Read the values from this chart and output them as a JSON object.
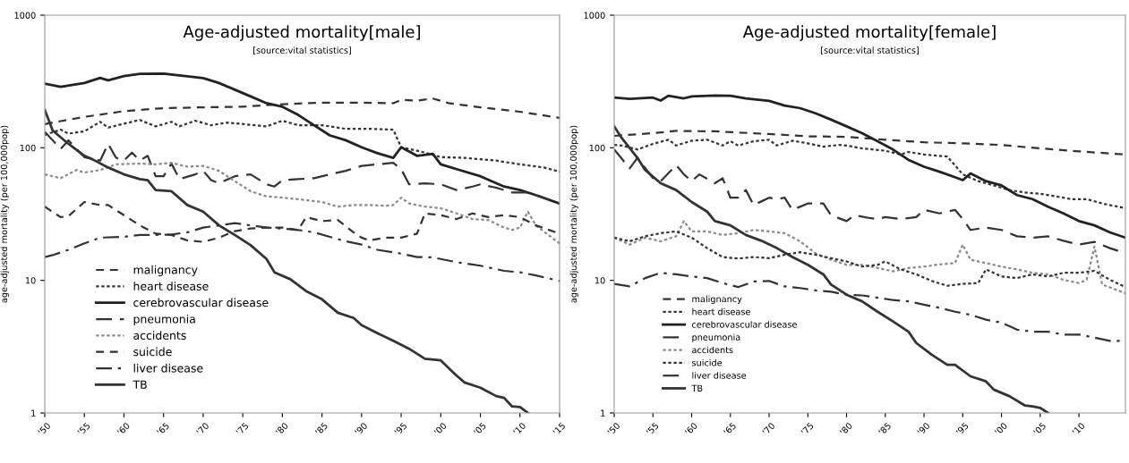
{
  "chart_data": [
    {
      "type": "line",
      "title": "Age-adjusted mortality[male]",
      "subtitle": "[source:vital statistics]",
      "ylabel": "age-adjusted mortality (per 100,000pop)",
      "log": "y",
      "grid": false,
      "legend": "bottom left",
      "xlim": [
        1950,
        2015
      ],
      "xticks": [
        {
          "value": 1950,
          "label": "'50"
        },
        {
          "value": 1955,
          "label": "'55"
        },
        {
          "value": 1960,
          "label": "'60"
        },
        {
          "value": 1965,
          "label": "'65"
        },
        {
          "value": 1970,
          "label": "'70"
        },
        {
          "value": 1975,
          "label": "'75"
        },
        {
          "value": 1980,
          "label": "'80"
        },
        {
          "value": 1985,
          "label": "'85"
        },
        {
          "value": 1990,
          "label": "'90"
        },
        {
          "value": 1995,
          "label": "'95"
        },
        {
          "value": 2000,
          "label": "'00"
        },
        {
          "value": 2005,
          "label": "'05"
        },
        {
          "value": 2010,
          "label": "'10"
        },
        {
          "value": 2015,
          "label": "'15"
        }
      ],
      "ylim": [
        1,
        1000
      ],
      "yticks": [
        1,
        10,
        100,
        1000
      ],
      "series": [
        {
          "name": "malignancy",
          "color": "#333333",
          "line_style": "dashed",
          "x": [
            1950,
            1955,
            1960,
            1965,
            1970,
            1975,
            1980,
            1985,
            1990,
            1994,
            1995,
            1997,
            1999,
            2001,
            2005,
            2010,
            2015
          ],
          "values": [
            151,
            171,
            189,
            199,
            202,
            204,
            213,
            219,
            219,
            217,
            230,
            227,
            235,
            217,
            202,
            187,
            168
          ]
        },
        {
          "name": "heart disease",
          "color": "#333333",
          "line_style": "dotted",
          "x": [
            1950,
            1952,
            1953,
            1955,
            1957,
            1958,
            1960,
            1962,
            1964,
            1966,
            1967,
            1969,
            1971,
            1973,
            1976,
            1978,
            1980,
            1982,
            1985,
            1988,
            1991,
            1994,
            1995,
            1996,
            1998,
            2000,
            2003,
            2005,
            2007,
            2010,
            2013,
            2015
          ],
          "values": [
            125,
            137,
            128,
            133,
            157,
            142,
            152,
            162,
            145,
            157,
            145,
            160,
            148,
            155,
            149,
            145,
            160,
            148,
            148,
            139,
            139,
            137,
            101,
            98,
            92,
            85,
            84,
            82,
            80,
            75,
            71,
            66
          ]
        },
        {
          "name": "cerebrovascular disease",
          "color": "#222222",
          "line_style": "solid",
          "x": [
            1950,
            1952,
            1955,
            1957,
            1958,
            1960,
            1962,
            1965,
            1967,
            1970,
            1972,
            1974,
            1976,
            1978,
            1980,
            1982,
            1984,
            1986,
            1988,
            1990,
            1992,
            1994,
            1995,
            1997,
            1999,
            2000,
            2002,
            2005,
            2008,
            2010,
            2012,
            2015
          ],
          "values": [
            305,
            288,
            308,
            337,
            323,
            347,
            361,
            363,
            351,
            335,
            308,
            274,
            244,
            217,
            204,
            177,
            148,
            124,
            114,
            101,
            91,
            84,
            101,
            87,
            90,
            75,
            69,
            61,
            51,
            48,
            44,
            38
          ]
        },
        {
          "name": "pneumonia",
          "color": "#333333",
          "line_style": "longdash",
          "x": [
            1950,
            1952,
            1953,
            1955,
            1957,
            1958,
            1959,
            1960,
            1961,
            1962,
            1963,
            1964,
            1965,
            1966,
            1967,
            1969,
            1970,
            1971,
            1972,
            1974,
            1976,
            1978,
            1979,
            1980,
            1982,
            1984,
            1986,
            1988,
            1990,
            1992,
            1994,
            1995,
            1996,
            1998,
            2000,
            2002,
            2004,
            2005,
            2007,
            2009,
            2011,
            2013,
            2015
          ],
          "values": [
            132,
            98,
            114,
            85,
            80,
            107,
            84,
            80,
            92,
            80,
            87,
            61,
            61,
            76,
            58,
            63,
            67,
            57,
            54,
            61,
            63,
            53,
            51,
            57,
            58,
            59,
            63,
            67,
            73,
            75,
            77,
            69,
            53,
            54,
            53,
            48,
            51,
            53,
            50,
            46,
            46,
            42,
            38
          ]
        },
        {
          "name": "accidents",
          "color": "#8a8a8a",
          "line_style": "dotted",
          "x": [
            1950,
            1952,
            1954,
            1955,
            1957,
            1959,
            1962,
            1964,
            1966,
            1968,
            1970,
            1972,
            1974,
            1976,
            1978,
            1980,
            1982,
            1985,
            1987,
            1989,
            1991,
            1993,
            1994,
            1995,
            1996,
            1998,
            2000,
            2002,
            2004,
            2006,
            2008,
            2009,
            2010,
            2011,
            2012,
            2015
          ],
          "values": [
            63,
            59,
            68,
            65,
            68,
            75,
            76,
            75,
            77,
            72,
            73,
            67,
            56,
            47,
            43,
            42,
            41,
            39,
            36,
            37,
            37,
            36.5,
            37,
            42,
            38,
            36,
            35,
            32,
            29,
            28.5,
            25,
            24,
            25,
            33,
            26,
            19
          ]
        },
        {
          "name": "suicide",
          "color": "#333333",
          "line_style": "dashed",
          "x": [
            1950,
            1952,
            1953,
            1955,
            1957,
            1958,
            1960,
            1962,
            1964,
            1966,
            1968,
            1970,
            1972,
            1974,
            1976,
            1978,
            1980,
            1982,
            1983,
            1985,
            1987,
            1989,
            1990,
            1991,
            1993,
            1995,
            1997,
            1998,
            2000,
            2002,
            2004,
            2006,
            2008,
            2010,
            2012,
            2015
          ],
          "values": [
            36,
            30,
            30.5,
            39,
            37,
            37,
            31,
            26,
            22.5,
            22,
            20,
            19.5,
            21,
            23.5,
            24.6,
            25,
            25,
            24,
            30,
            28,
            28.5,
            23,
            21,
            20,
            21,
            21,
            22.5,
            32,
            31,
            29,
            32,
            30,
            31,
            30,
            26,
            22.5
          ]
        },
        {
          "name": "liver disease",
          "color": "#333333",
          "line_style": "dashdot",
          "x": [
            1950,
            1951,
            1953,
            1955,
            1957,
            1960,
            1962,
            1964,
            1966,
            1968,
            1970,
            1972,
            1974,
            1976,
            1978,
            1980,
            1982,
            1984,
            1986,
            1988,
            1990,
            1992,
            1995,
            1997,
            1999,
            2002,
            2005,
            2008,
            2010,
            2012,
            2015
          ],
          "values": [
            15,
            15.5,
            17,
            19,
            21,
            21.3,
            22,
            22,
            22.2,
            23,
            25,
            26,
            27,
            26,
            25,
            24.6,
            24,
            23,
            21.3,
            19.7,
            18.6,
            17,
            15.9,
            15,
            14.9,
            13.7,
            12.9,
            11.8,
            11.5,
            10.9,
            9.9
          ]
        },
        {
          "name": "TB",
          "color": "#333333",
          "line_style": "solid",
          "x": [
            1950,
            1951,
            1953,
            1955,
            1956,
            1958,
            1960,
            1962,
            1963,
            1964,
            1966,
            1968,
            1970,
            1972,
            1974,
            1976,
            1978,
            1979,
            1981,
            1983,
            1985,
            1987,
            1989,
            1990,
            1992,
            1994,
            1996,
            1998,
            2000,
            2002,
            2003,
            2005,
            2007,
            2008,
            2009,
            2010,
            2011
          ],
          "values": [
            193,
            135,
            107,
            87,
            82,
            71,
            63,
            58,
            57,
            48,
            47,
            37,
            33,
            26,
            22,
            18.4,
            14.5,
            11.5,
            10.2,
            8.3,
            7.2,
            5.7,
            5.2,
            4.6,
            4.0,
            3.5,
            3.05,
            2.56,
            2.49,
            1.91,
            1.7,
            1.55,
            1.34,
            1.3,
            1.12,
            1.11,
            1.0
          ]
        }
      ]
    },
    {
      "type": "line",
      "title": "Age-adjusted mortality[female]",
      "subtitle": "[source:vital statistics]",
      "ylabel": "age-adjusted mortality (per 100,000pop)",
      "log": "y",
      "grid": false,
      "legend": "bottom left",
      "xlim": [
        1950,
        2016
      ],
      "xticks": [
        {
          "value": 1950,
          "label": "'50"
        },
        {
          "value": 1955,
          "label": "'55"
        },
        {
          "value": 1960,
          "label": "'60"
        },
        {
          "value": 1965,
          "label": "'65"
        },
        {
          "value": 1970,
          "label": "'70"
        },
        {
          "value": 1975,
          "label": "'75"
        },
        {
          "value": 1980,
          "label": "'80"
        },
        {
          "value": 1985,
          "label": "'85"
        },
        {
          "value": 1990,
          "label": "'90"
        },
        {
          "value": 1995,
          "label": "'95"
        },
        {
          "value": 2000,
          "label": "'00"
        },
        {
          "value": 2005,
          "label": "'05"
        },
        {
          "value": 2010,
          "label": "'10"
        }
      ],
      "ylim": [
        1,
        1000
      ],
      "yticks": [
        1,
        10,
        100,
        1000
      ],
      "series": [
        {
          "name": "malignancy",
          "color": "#333333",
          "line_style": "dashed",
          "x": [
            1950,
            1955,
            1958,
            1963,
            1970,
            1975,
            1980,
            1985,
            1990,
            1995,
            2000,
            2005,
            2010,
            2016
          ],
          "values": [
            123,
            129,
            134,
            133,
            127,
            122,
            121,
            115,
            110,
            108,
            105,
            99,
            94,
            89
          ]
        },
        {
          "name": "heart disease",
          "color": "#333333",
          "line_style": "dotted",
          "x": [
            1950,
            1951,
            1953,
            1955,
            1957,
            1958,
            1960,
            1962,
            1964,
            1965,
            1966,
            1968,
            1970,
            1971,
            1973,
            1975,
            1977,
            1979,
            1980,
            1982,
            1985,
            1987,
            1988,
            1990,
            1993,
            1995,
            1997,
            1999,
            2001,
            2003,
            2005,
            2007,
            2009,
            2011,
            2013,
            2016
          ],
          "values": [
            105,
            104,
            97,
            107,
            115,
            104,
            113,
            115,
            104,
            112,
            104,
            112,
            115,
            104,
            113,
            108,
            102,
            105,
            104,
            99,
            95,
            89,
            93,
            89,
            86,
            63,
            56,
            52,
            48,
            46,
            45,
            43,
            41,
            41,
            38,
            35
          ]
        },
        {
          "name": "cerebrovascular disease",
          "color": "#222222",
          "line_style": "solid",
          "x": [
            1950,
            1952,
            1955,
            1956,
            1957,
            1959,
            1960,
            1963,
            1965,
            1967,
            1970,
            1972,
            1974,
            1976,
            1978,
            1980,
            1982,
            1984,
            1986,
            1988,
            1990,
            1992,
            1994,
            1995,
            1996,
            1998,
            2000,
            2002,
            2004,
            2006,
            2008,
            2010,
            2012,
            2014,
            2016
          ],
          "values": [
            239,
            234,
            239,
            227,
            247,
            236,
            244,
            248,
            247,
            236,
            226,
            208,
            199,
            182,
            163,
            145,
            129,
            112,
            97,
            81,
            72,
            66,
            60,
            57,
            64,
            56,
            52,
            44,
            41,
            36,
            32,
            28,
            26,
            23,
            21
          ]
        },
        {
          "name": "pneumonia",
          "color": "#333333",
          "line_style": "longdash",
          "x": [
            1950,
            1952,
            1953,
            1955,
            1956,
            1958,
            1959,
            1960,
            1961,
            1963,
            1964,
            1965,
            1966,
            1967,
            1968,
            1970,
            1971,
            1972,
            1973,
            1975,
            1977,
            1978,
            1980,
            1981,
            1983,
            1984,
            1985,
            1987,
            1989,
            1990,
            1992,
            1994,
            1995,
            1996,
            1998,
            2000,
            2002,
            2004,
            2006,
            2008,
            2010,
            2012,
            2014,
            2016
          ],
          "values": [
            97,
            70,
            84,
            59,
            56,
            74,
            63,
            56,
            63,
            54,
            59,
            42,
            42,
            48,
            37,
            42,
            41,
            42,
            34,
            38,
            38,
            31,
            28,
            31,
            29.5,
            29,
            30,
            29,
            30,
            34,
            32,
            34,
            29,
            24,
            25,
            24,
            21.5,
            21,
            21.5,
            19.9,
            18.6,
            19.5,
            17.5,
            16
          ]
        },
        {
          "name": "accidents",
          "color": "#8a8a8a",
          "line_style": "dotted",
          "x": [
            1950,
            1952,
            1954,
            1956,
            1958,
            1959,
            1960,
            1962,
            1964,
            1966,
            1968,
            1970,
            1972,
            1974,
            1976,
            1978,
            1980,
            1982,
            1984,
            1986,
            1988,
            1990,
            1992,
            1994,
            1995,
            1996,
            1998,
            2000,
            2002,
            2004,
            2006,
            2008,
            2010,
            2011,
            2012,
            2013,
            2016
          ],
          "values": [
            21,
            18.6,
            21,
            19.7,
            21.5,
            28,
            23.4,
            23.4,
            22,
            22.7,
            24,
            23.4,
            22.7,
            19.7,
            16,
            14.3,
            13.1,
            13.1,
            12.4,
            11.7,
            12.4,
            12.7,
            13.2,
            13.5,
            18.6,
            14.3,
            13.5,
            12.7,
            12.1,
            11.4,
            11.1,
            10.1,
            9.55,
            10.1,
            18,
            9.3,
            8.0
          ]
        },
        {
          "name": "suicide",
          "color": "#333333",
          "line_style": "dotted",
          "x": [
            1950,
            1952,
            1954,
            1956,
            1958,
            1960,
            1962,
            1964,
            1966,
            1968,
            1970,
            1972,
            1974,
            1976,
            1978,
            1980,
            1982,
            1984,
            1985,
            1987,
            1989,
            1991,
            1993,
            1995,
            1997,
            1998,
            2000,
            2002,
            2004,
            2006,
            2008,
            2010,
            2012,
            2014,
            2016
          ],
          "values": [
            21,
            19.7,
            21.5,
            22.7,
            23.4,
            21,
            17.5,
            15,
            14.6,
            15,
            14.7,
            15.6,
            16.3,
            15.6,
            14.7,
            13.9,
            12.7,
            13.1,
            13.9,
            12.1,
            11.1,
            9.9,
            9.1,
            9.4,
            9.55,
            12.1,
            10.7,
            10.4,
            11.1,
            10.7,
            11.4,
            11.4,
            11.8,
            10.1,
            8.9
          ]
        },
        {
          "name": "liver disease",
          "color": "#333333",
          "line_style": "dashdot",
          "x": [
            1950,
            1952,
            1954,
            1956,
            1958,
            1960,
            1962,
            1964,
            1966,
            1968,
            1970,
            1972,
            1974,
            1976,
            1978,
            1980,
            1982,
            1984,
            1986,
            1988,
            1990,
            1992,
            1994,
            1996,
            1998,
            2000,
            2002,
            2004,
            2006,
            2008,
            2010,
            2012,
            2014,
            2016
          ],
          "values": [
            9.4,
            9.0,
            10.4,
            11.4,
            11.1,
            10.7,
            10.4,
            9.55,
            8.9,
            9.8,
            9.9,
            9.0,
            8.75,
            8.4,
            8.2,
            7.8,
            7.7,
            7.4,
            7.1,
            6.95,
            6.55,
            6.2,
            5.8,
            5.5,
            5.05,
            4.8,
            4.25,
            4.1,
            4.1,
            3.9,
            3.9,
            3.7,
            3.5,
            3.5
          ]
        },
        {
          "name": "TB",
          "color": "#333333",
          "line_style": "solid",
          "x": [
            1950,
            1951,
            1953,
            1954,
            1956,
            1958,
            1960,
            1962,
            1963,
            1965,
            1967,
            1969,
            1971,
            1973,
            1975,
            1977,
            1978,
            1980,
            1982,
            1984,
            1986,
            1988,
            1989,
            1991,
            1993,
            1994,
            1996,
            1998,
            1999,
            2001,
            2003,
            2004,
            2005,
            2006
          ],
          "values": [
            145,
            118,
            84,
            68,
            54,
            48,
            39,
            33,
            28,
            26,
            22,
            19.9,
            17.5,
            15,
            13.1,
            11.1,
            9.3,
            7.8,
            6.95,
            5.8,
            4.9,
            4.1,
            3.37,
            2.75,
            2.31,
            2.31,
            1.89,
            1.73,
            1.5,
            1.34,
            1.14,
            1.12,
            1.09,
            1.0
          ]
        }
      ]
    }
  ]
}
